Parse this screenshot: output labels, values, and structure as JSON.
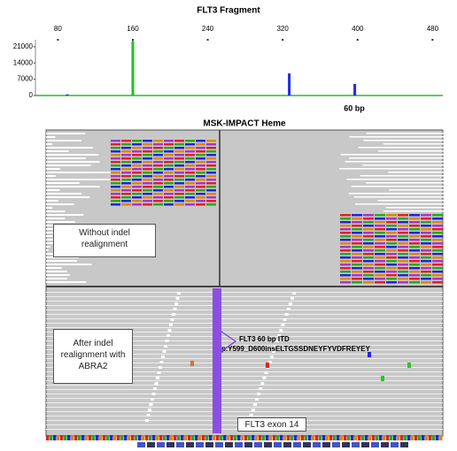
{
  "chart_data": {
    "type": "peaks",
    "title": "FLT3 Fragment",
    "x": [
      90,
      160,
      327,
      397
    ],
    "series": [
      {
        "color": "#2db82d",
        "values": [
          null,
          23500,
          null,
          null
        ]
      },
      {
        "color": "#1f2ee0",
        "values": [
          500,
          null,
          9500,
          5000
        ]
      }
    ],
    "xlim": [
      56,
      491
    ],
    "xticks": [
      80,
      160,
      240,
      320,
      400,
      480
    ],
    "ylim": [
      0,
      24000
    ],
    "yticks": [
      0,
      7000,
      14000,
      21000
    ],
    "annotation": "60 bp"
  },
  "alignment": {
    "title": "MSK-IMPACT Heme",
    "before_label": "Without indel realignment",
    "after_label": "After indel realignment with ABRA2",
    "itd_label": "FLT3 60 bp ITD",
    "itd_protein": "p.Y599_D600insELTGSSDNEYFYVDFREYEY",
    "exon_label": "FLT3 exon 14"
  }
}
